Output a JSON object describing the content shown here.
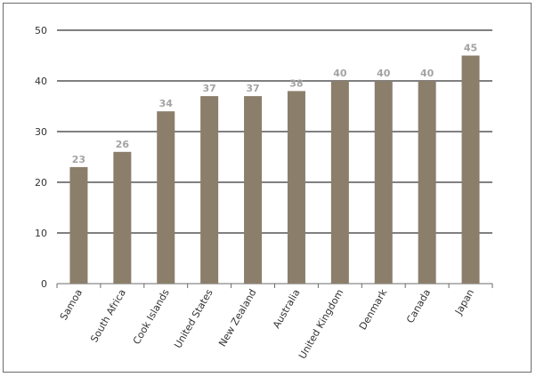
{
  "chart_data": {
    "type": "bar",
    "title": "",
    "xlabel": "",
    "ylabel": "",
    "categories": [
      "Samoa",
      "South Africa",
      "Cook Islands",
      "United States",
      "New Zealand",
      "Australia",
      "United Kingdom",
      "Denmark",
      "Canada",
      "Japan"
    ],
    "values": [
      23,
      26,
      34,
      37,
      37,
      38,
      40,
      40,
      40,
      45
    ],
    "data_labels": [
      "23",
      "26",
      "34",
      "37",
      "37",
      "38",
      "40",
      "40",
      "40",
      "45"
    ],
    "ylim": [
      0,
      50
    ],
    "yticks": [
      0,
      10,
      20,
      30,
      40,
      50
    ],
    "grid": "horizontal",
    "legend": "none",
    "colors": {
      "bar": "#8b7e6b",
      "grid": "#000000",
      "data_label": "#a3a3a3",
      "axis": "#6b6b6b"
    }
  }
}
